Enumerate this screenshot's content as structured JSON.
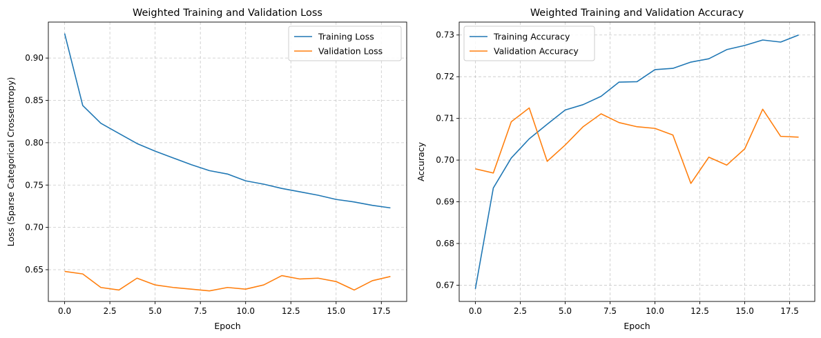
{
  "chart_data": [
    {
      "type": "line",
      "title": "Weighted Training and Validation Loss",
      "xlabel": "Epoch",
      "ylabel": "Loss (Sparse Categorical Crossentropy)",
      "xlim": [
        -0.9,
        18.9
      ],
      "ylim": [
        0.6125,
        0.9425
      ],
      "grid": true,
      "legend_position": "top-right",
      "x_ticks": [
        0.0,
        2.5,
        5.0,
        7.5,
        10.0,
        12.5,
        15.0,
        17.5
      ],
      "x_tick_labels": [
        "0.0",
        "2.5",
        "5.0",
        "7.5",
        "10.0",
        "12.5",
        "15.0",
        "17.5"
      ],
      "y_ticks": [
        0.65,
        0.7,
        0.75,
        0.8,
        0.85,
        0.9
      ],
      "y_tick_labels": [
        "0.65",
        "0.70",
        "0.75",
        "0.80",
        "0.85",
        "0.90"
      ],
      "x": [
        0,
        1,
        2,
        3,
        4,
        5,
        6,
        7,
        8,
        9,
        10,
        11,
        12,
        13,
        14,
        15,
        16,
        17,
        18
      ],
      "series": [
        {
          "name": "Training Loss",
          "color": "#1f77b4",
          "values": [
            0.929,
            0.844,
            0.823,
            0.811,
            0.799,
            0.79,
            0.782,
            0.774,
            0.767,
            0.763,
            0.755,
            0.751,
            0.746,
            0.742,
            0.738,
            0.733,
            0.73,
            0.726,
            0.723
          ]
        },
        {
          "name": "Validation Loss",
          "color": "#ff7f0e",
          "values": [
            0.648,
            0.645,
            0.629,
            0.626,
            0.64,
            0.632,
            0.629,
            0.627,
            0.625,
            0.629,
            0.627,
            0.632,
            0.643,
            0.639,
            0.64,
            0.636,
            0.626,
            0.637,
            0.642
          ]
        }
      ]
    },
    {
      "type": "line",
      "title": "Weighted Training and Validation Accuracy",
      "xlabel": "Epoch",
      "ylabel": "Accuracy",
      "xlim": [
        -0.9,
        18.9
      ],
      "ylim": [
        0.6661,
        0.7331
      ],
      "grid": true,
      "legend_position": "top-left",
      "x_ticks": [
        0.0,
        2.5,
        5.0,
        7.5,
        10.0,
        12.5,
        15.0,
        17.5
      ],
      "x_tick_labels": [
        "0.0",
        "2.5",
        "5.0",
        "7.5",
        "10.0",
        "12.5",
        "15.0",
        "17.5"
      ],
      "y_ticks": [
        0.67,
        0.68,
        0.69,
        0.7,
        0.71,
        0.72,
        0.73
      ],
      "y_tick_labels": [
        "0.67",
        "0.68",
        "0.69",
        "0.70",
        "0.71",
        "0.72",
        "0.73"
      ],
      "x": [
        0,
        1,
        2,
        3,
        4,
        5,
        6,
        7,
        8,
        9,
        10,
        11,
        12,
        13,
        14,
        15,
        16,
        17,
        18
      ],
      "series": [
        {
          "name": "Training Accuracy",
          "color": "#1f77b4",
          "values": [
            0.6691,
            0.6933,
            0.7005,
            0.7051,
            0.7086,
            0.712,
            0.7133,
            0.7153,
            0.7187,
            0.7188,
            0.7217,
            0.722,
            0.7235,
            0.7243,
            0.7265,
            0.7275,
            0.7288,
            0.7283,
            0.73
          ]
        },
        {
          "name": "Validation Accuracy",
          "color": "#ff7f0e",
          "values": [
            0.6979,
            0.6969,
            0.7092,
            0.7125,
            0.6997,
            0.7036,
            0.708,
            0.7111,
            0.709,
            0.708,
            0.7076,
            0.706,
            0.6944,
            0.7007,
            0.6988,
            0.7027,
            0.7122,
            0.7057,
            0.7055
          ]
        }
      ]
    }
  ]
}
